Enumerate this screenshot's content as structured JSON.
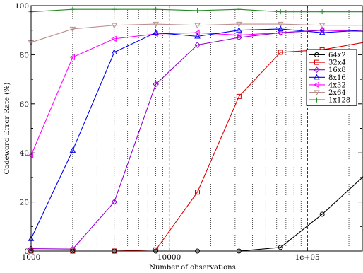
{
  "chart_data": {
    "type": "line",
    "title": "",
    "xlabel": "Number of observations",
    "ylabel": "Codeword Error Rate (%)",
    "xscale": "log",
    "xlim": [
      1000,
      250000
    ],
    "ylim": [
      0,
      100
    ],
    "x_ticks": [
      {
        "value": 1000,
        "label": "1000"
      },
      {
        "value": 10000,
        "label": "10000"
      },
      {
        "value": 100000,
        "label": "1e+05"
      }
    ],
    "y_ticks": [
      {
        "value": 0,
        "label": "0"
      },
      {
        "value": 20,
        "label": "20"
      },
      {
        "value": 40,
        "label": "40"
      },
      {
        "value": 60,
        "label": "60"
      },
      {
        "value": 80,
        "label": "80"
      },
      {
        "value": 100,
        "label": "100"
      }
    ],
    "grid": {
      "minor_vertical_dotted": true,
      "major_vertical_dashed": [
        10000,
        100000
      ]
    },
    "legend_position": "right",
    "x": [
      1000,
      2000,
      4000,
      8000,
      16000,
      32000,
      64000,
      128000,
      256000
    ],
    "series": [
      {
        "name": "64x2",
        "color": "#000000",
        "marker": "circle",
        "values": [
          0,
          0,
          0,
          0,
          0,
          0,
          1.5,
          15,
          30.5
        ]
      },
      {
        "name": "32x4",
        "color": "#dd0000",
        "marker": "square",
        "values": [
          0,
          0,
          0,
          0.5,
          24,
          63,
          81,
          82,
          85
        ]
      },
      {
        "name": "16x8",
        "color": "#9400d3",
        "marker": "diamond",
        "values": [
          1,
          0.8,
          20,
          68,
          84,
          87,
          89,
          90,
          90
        ]
      },
      {
        "name": "8x16",
        "color": "#0000ee",
        "marker": "triangle-up",
        "values": [
          5,
          41,
          81,
          89,
          87.5,
          90,
          90.5,
          89,
          90
        ]
      },
      {
        "name": "4x32",
        "color": "#ff00ff",
        "marker": "triangle-left",
        "values": [
          39,
          79,
          86.5,
          88.5,
          89,
          88,
          89,
          90,
          89.5
        ]
      },
      {
        "name": "2x64",
        "color": "#bc8f8f",
        "marker": "triangle-down",
        "values": [
          85,
          90.5,
          92,
          92.5,
          92,
          92.5,
          92.5,
          92,
          92
        ]
      },
      {
        "name": "1x128",
        "color": "#228b22",
        "marker": "plus",
        "values": [
          97.5,
          98.5,
          98.5,
          98.5,
          98,
          98.5,
          97.5,
          97.5,
          97.5
        ]
      }
    ]
  }
}
